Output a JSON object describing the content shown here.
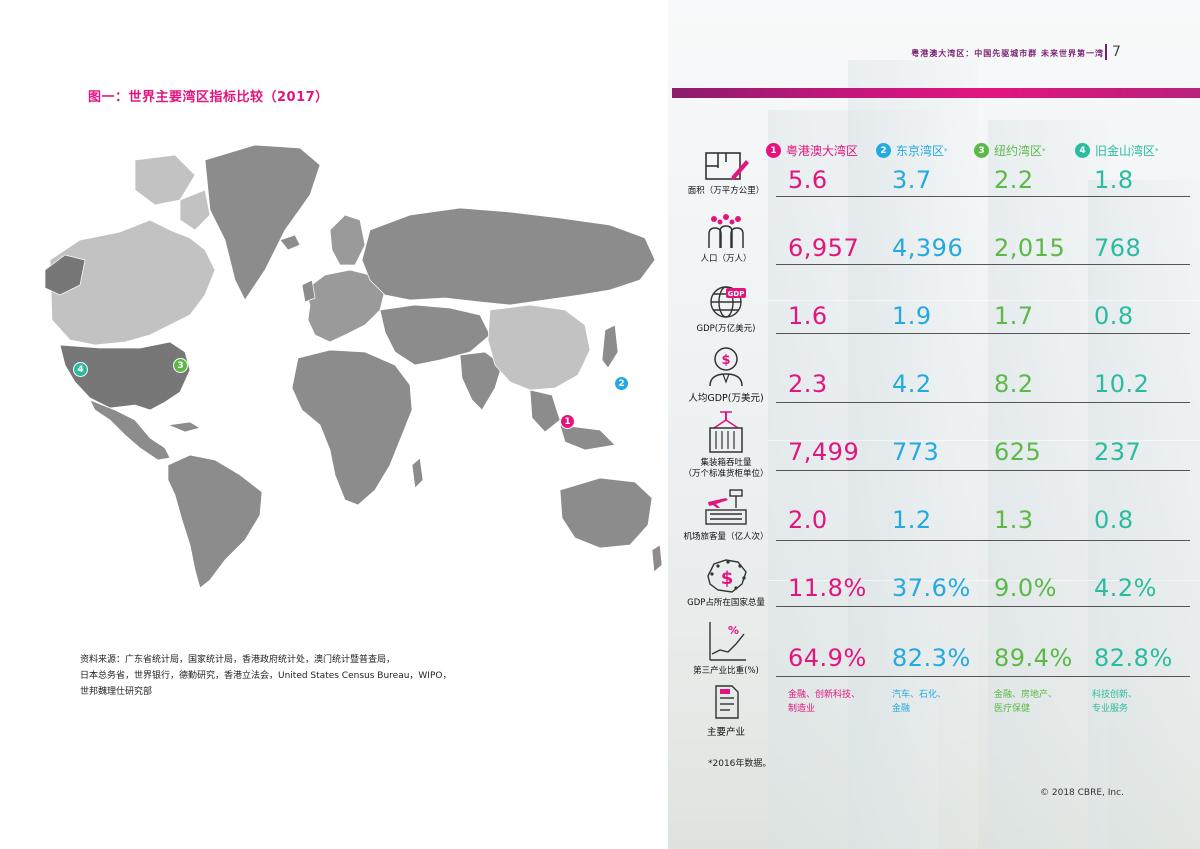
{
  "left": {
    "figure_title": "图一：世界主要湾区指标比较（2017）",
    "source_lines": [
      "资料来源：广东省统计局，国家统计局，香港政府统计处，澳门统计暨普查局，",
      "日本总务省，世界银行，德勤研究，香港立法会，United States Census Bureau，WIPO，",
      "世邦魏理仕研究部"
    ],
    "markers": [
      {
        "num": "1",
        "color": "#e2157f"
      },
      {
        "num": "2",
        "color": "#24a9e0"
      },
      {
        "num": "3",
        "color": "#5cb948"
      },
      {
        "num": "4",
        "color": "#2bbca0"
      }
    ]
  },
  "right": {
    "running_head": "粤港澳大湾区：中国先驱城市群 未来世界第一湾",
    "page_number": "7",
    "columns": [
      {
        "num": "1",
        "name": "粤港澳大湾区",
        "star": "",
        "color": "#e2157f"
      },
      {
        "num": "2",
        "name": "东京湾区",
        "star": "*",
        "color": "#24a9e0"
      },
      {
        "num": "3",
        "name": "纽约湾区",
        "star": "*",
        "color": "#5cb948"
      },
      {
        "num": "4",
        "name": "旧金山湾区",
        "star": "*",
        "color": "#2bbca0"
      }
    ],
    "rows": [
      {
        "label": "面积（万平方公里）",
        "icon": "floorplan-icon",
        "values": [
          "5.6",
          "3.7",
          "2.2",
          "1.8"
        ]
      },
      {
        "label": "人口（万人）",
        "icon": "people-icon",
        "values": [
          "6,957",
          "4,396",
          "2,015",
          "768"
        ]
      },
      {
        "label": "GDP(万亿美元)",
        "icon": "globe-gdp-icon",
        "values": [
          "1.6",
          "1.9",
          "1.7",
          "0.8"
        ]
      },
      {
        "label": "人均GDP(万美元)",
        "icon": "person-dollar-icon",
        "values": [
          "2.3",
          "4.2",
          "8.2",
          "10.2"
        ]
      },
      {
        "label": "集装箱吞吐量",
        "label2": "（万个标准货柜单位）",
        "icon": "container-icon",
        "values": [
          "7,499",
          "773",
          "625",
          "237"
        ]
      },
      {
        "label": "机场旅客量（亿人次）",
        "icon": "airport-icon",
        "values": [
          "2.0",
          "1.2",
          "1.3",
          "0.8"
        ]
      },
      {
        "label": "GDP占所在国家总量",
        "icon": "map-dollar-icon",
        "values": [
          "11.8%",
          "37.6%",
          "9.0%",
          "4.2%"
        ]
      },
      {
        "label": "第三产业比重(%)",
        "icon": "chart-percent-icon",
        "values": [
          "64.9%",
          "82.3%",
          "89.4%",
          "82.8%"
        ]
      }
    ],
    "industries": {
      "label": "主要产业",
      "icon": "document-icon",
      "values": [
        [
          "金融、创新科技、",
          "制造业"
        ],
        [
          "汽车、石化、",
          "金融"
        ],
        [
          "金融、房地产、",
          "医疗保健"
        ],
        [
          "科技创新、",
          "专业服务"
        ]
      ]
    },
    "footnote": "*2016年数据。",
    "copyright": "© 2018 CBRE, Inc."
  }
}
